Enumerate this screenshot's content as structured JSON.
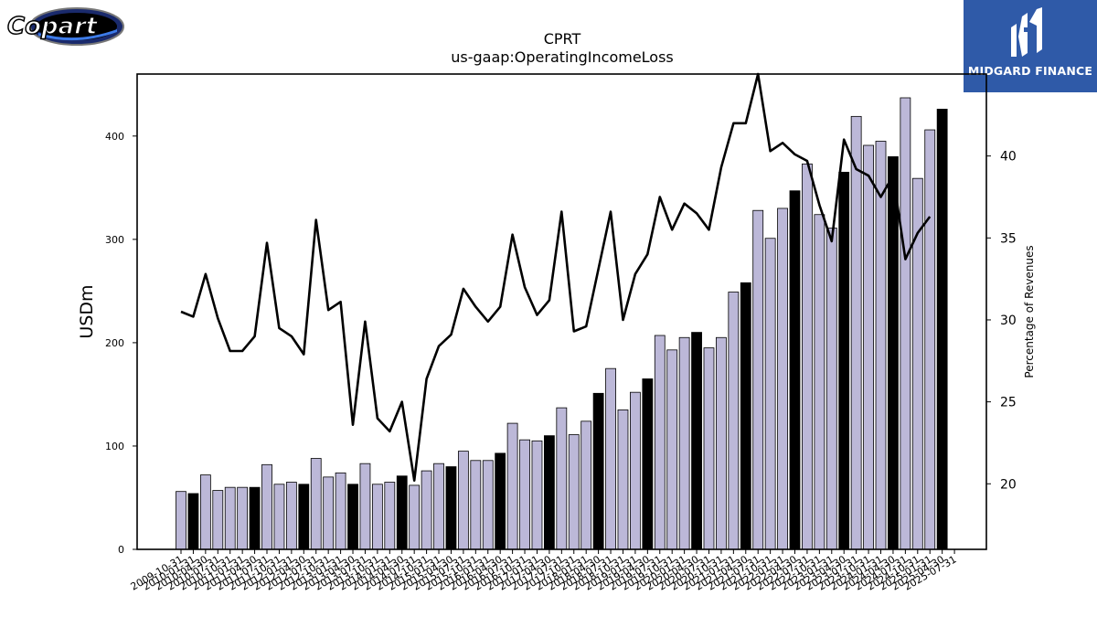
{
  "logos": {
    "left_text": "Copart",
    "right_text": "MIDGARD FINANCE"
  },
  "chart_data": {
    "type": "bar",
    "title": "CPRT",
    "subtitle": "us-gaap:OperatingIncomeLoss",
    "ylabel": "USDm",
    "y2label": "Percentage of Revenues",
    "ylim": [
      0,
      460
    ],
    "y2lim": [
      16,
      45
    ],
    "yticks": [
      0,
      100,
      200,
      300,
      400
    ],
    "y2ticks": [
      20,
      25,
      30,
      35,
      40
    ],
    "fy_end_color": "#000000",
    "quarter_color": "#bcb8d8",
    "line_color": "#000000",
    "categories": [
      "2009-10-31",
      "2010-01-31",
      "2010-04-30",
      "2010-07-31",
      "2010-10-31",
      "2011-01-31",
      "2011-04-30",
      "2011-07-31",
      "2011-10-31",
      "2012-01-31",
      "2012-04-30",
      "2012-07-31",
      "2012-10-31",
      "2013-01-31",
      "2013-04-30",
      "2013-07-31",
      "2013-10-31",
      "2014-01-31",
      "2014-04-30",
      "2014-07-31",
      "2014-10-31",
      "2015-01-31",
      "2015-04-30",
      "2015-07-31",
      "2015-10-31",
      "2016-01-31",
      "2016-04-30",
      "2016-07-31",
      "2016-10-31",
      "2017-01-31",
      "2017-04-30",
      "2017-07-31",
      "2017-10-31",
      "2018-01-31",
      "2018-04-30",
      "2018-07-31",
      "2018-10-31",
      "2019-01-31",
      "2019-04-30",
      "2019-07-31",
      "2019-10-31",
      "2020-01-31",
      "2020-04-30",
      "2020-07-31",
      "2020-10-31",
      "2021-01-31",
      "2021-04-30",
      "2021-07-31",
      "2021-10-31",
      "2022-01-31",
      "2022-04-30",
      "2022-07-31",
      "2022-10-31",
      "2023-01-31",
      "2023-04-30",
      "2023-07-31",
      "2023-10-31",
      "2024-01-31",
      "2024-04-30",
      "2024-07-31",
      "2024-10-31",
      "2025-01-31",
      "2025-04-30",
      "2025-07-31"
    ],
    "series": [
      {
        "values": [
          56,
          54,
          72,
          57,
          60,
          60,
          60,
          82,
          63,
          65,
          63,
          88,
          70,
          74,
          63,
          83,
          63,
          65,
          71,
          62,
          76,
          83,
          80,
          95,
          86,
          86,
          93,
          122,
          106,
          105,
          110,
          137,
          111,
          124,
          151,
          175,
          135,
          152,
          165,
          207,
          193,
          205,
          210,
          195,
          205,
          249,
          258,
          328,
          301,
          330,
          347,
          373,
          324,
          311,
          365,
          419,
          391,
          395,
          380,
          437,
          359,
          406,
          426,
          0
        ]
      },
      {
        "values": [
          30.5,
          30.2,
          32.8,
          30.1,
          28.1,
          28.1,
          29.0,
          34.7,
          29.5,
          29.0,
          27.9,
          36.1,
          30.6,
          31.1,
          23.6,
          29.9,
          24.0,
          23.2,
          25.0,
          20.2,
          26.4,
          28.4,
          29.1,
          31.9,
          30.8,
          29.9,
          30.8,
          35.2,
          32.0,
          30.3,
          31.2,
          36.6,
          29.3,
          29.6,
          33.1,
          36.6,
          30.0,
          32.8,
          34.0,
          37.5,
          35.5,
          37.1,
          36.5,
          35.5,
          39.3,
          42.0,
          42.0,
          45.0,
          40.3,
          40.8,
          40.1,
          39.7,
          37.0,
          34.8,
          41.0,
          39.2,
          38.8,
          37.5,
          38.8,
          33.7,
          35.3,
          36.3,
          null,
          null
        ]
      }
    ],
    "fy_end_flags": [
      0,
      1,
      0,
      0,
      0,
      0,
      1,
      0,
      0,
      0,
      1,
      0,
      0,
      0,
      1,
      0,
      0,
      0,
      1,
      0,
      0,
      0,
      1,
      0,
      0,
      0,
      1,
      0,
      0,
      0,
      1,
      0,
      0,
      0,
      1,
      0,
      0,
      0,
      1,
      0,
      0,
      0,
      1,
      0,
      0,
      0,
      1,
      0,
      0,
      0,
      1,
      0,
      0,
      0,
      1,
      0,
      0,
      0,
      1,
      0,
      0,
      0,
      1,
      0
    ]
  }
}
